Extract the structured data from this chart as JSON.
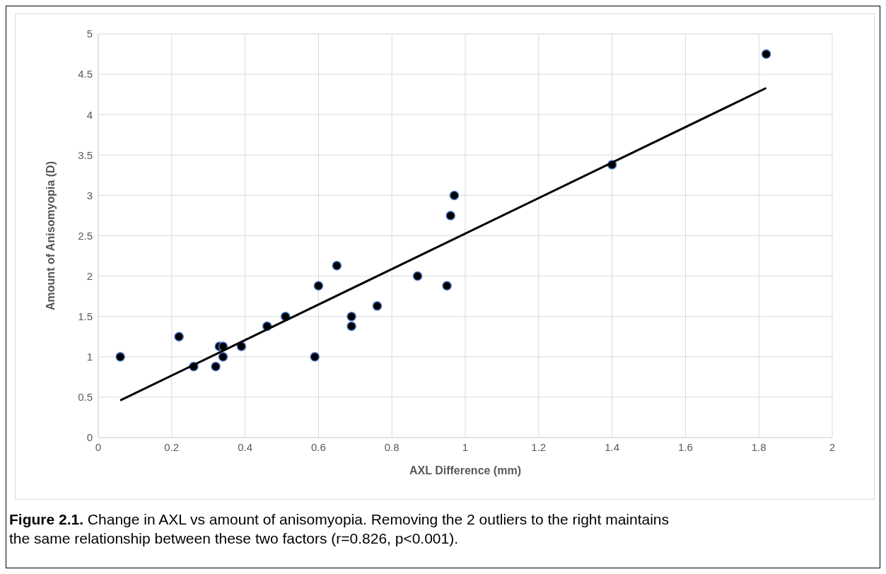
{
  "chart_data": {
    "type": "scatter",
    "xlabel": "AXL Difference (mm)",
    "ylabel": "Amount of Anisomyopia (D)",
    "annotations": [
      "Figure 2.1. Change in AXL vs amount of anisomyopia. Removing the 2 outliers to the right maintains the same relationship between these two factors (r=0.826, p<0.001)."
    ],
    "series": [
      {
        "color": "#000000",
        "marker": "circle",
        "x": [
          0.06,
          0.22,
          0.26,
          0.32,
          0.33,
          0.34,
          0.34,
          0.39,
          0.46,
          0.51,
          0.59,
          0.6,
          0.65,
          0.69,
          0.69,
          0.76,
          0.87,
          0.95,
          0.96,
          0.97,
          1.4,
          1.82
        ],
        "values": [
          1.0,
          1.25,
          0.88,
          0.88,
          1.13,
          1.13,
          1.0,
          1.13,
          1.38,
          1.5,
          1.0,
          1.88,
          2.13,
          1.5,
          1.38,
          1.63,
          2.0,
          1.88,
          2.75,
          3.0,
          3.38,
          4.75
        ]
      },
      {
        "type": "line",
        "color": "#000000",
        "marker": "none",
        "x": [
          0.06,
          1.82
        ],
        "values": [
          0.46,
          4.33
        ]
      }
    ],
    "xlim": [
      0,
      2
    ],
    "xticks": [
      0,
      0.2,
      0.4,
      0.6,
      0.8,
      1,
      1.2,
      1.4,
      1.6,
      1.8,
      2
    ],
    "ylim": [
      0,
      5
    ],
    "yticks": [
      0,
      0.5,
      1,
      1.5,
      2,
      2.5,
      3,
      3.5,
      4,
      4.5,
      5
    ],
    "grid": true
  }
}
